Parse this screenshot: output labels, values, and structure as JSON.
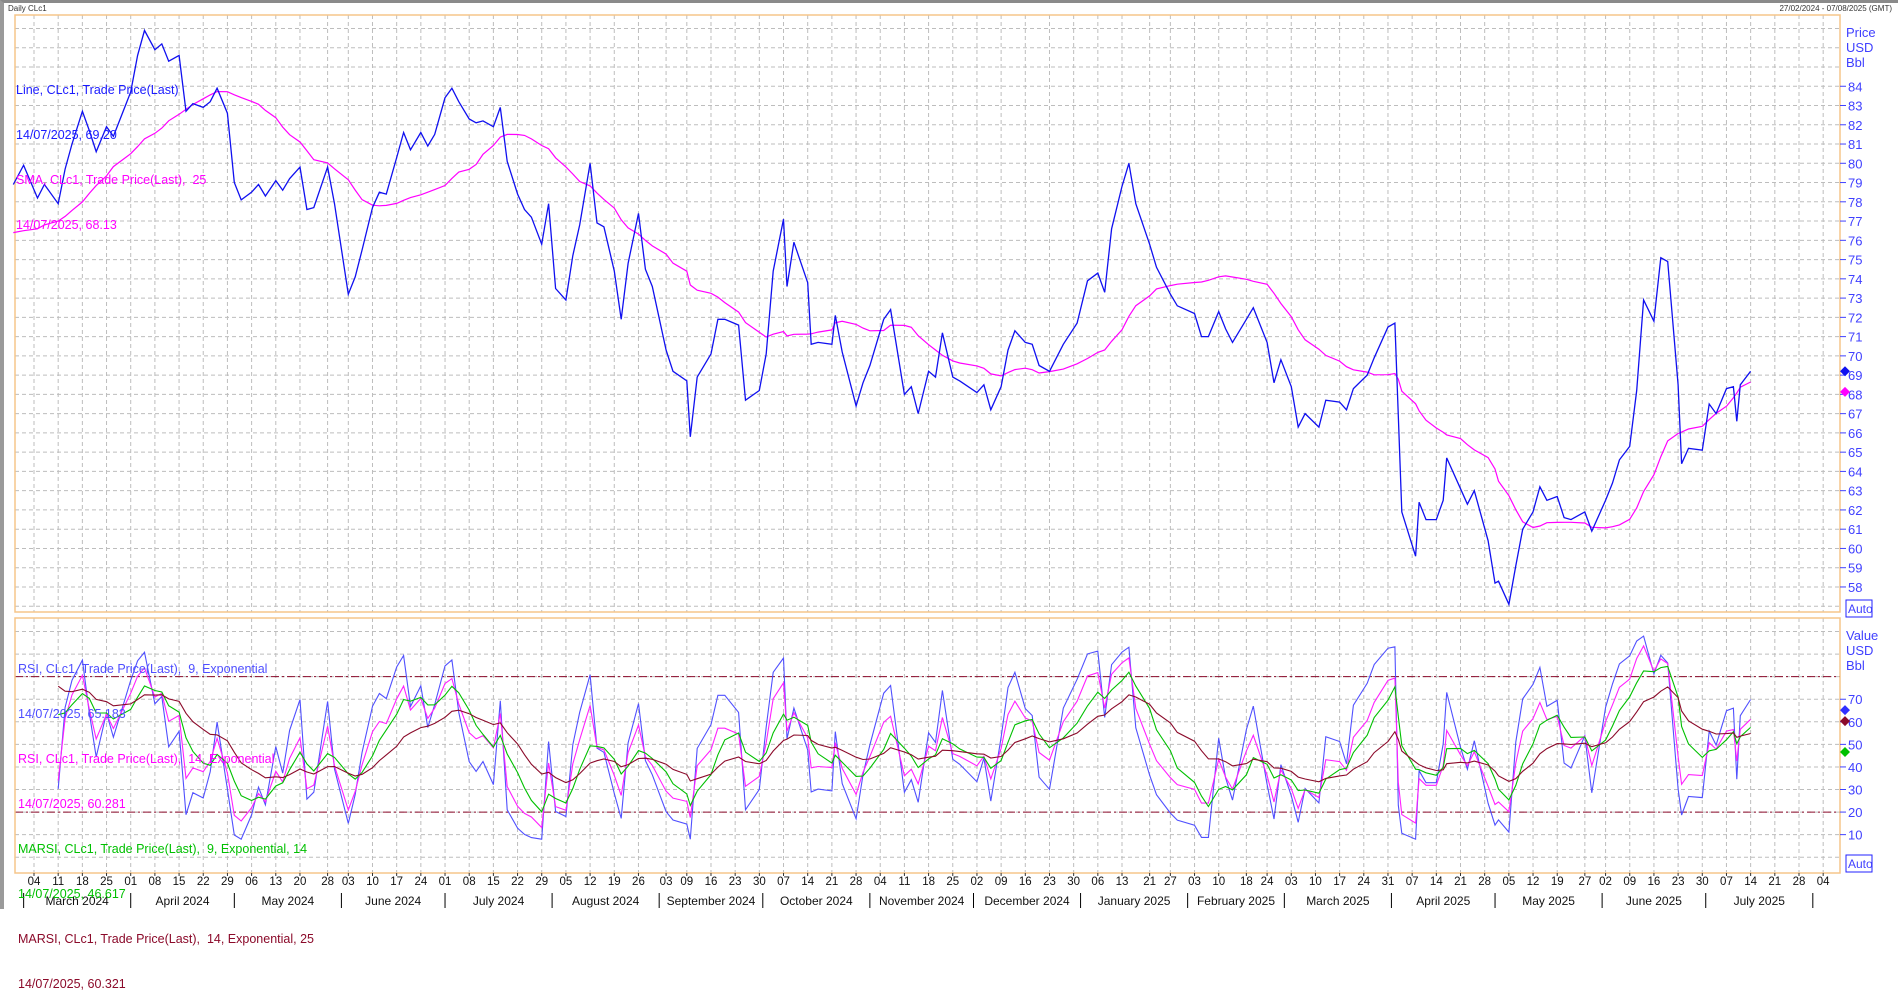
{
  "window": {
    "title": "Daily CLc1",
    "range": "27/02/2024 - 07/08/2025 (GMT)"
  },
  "colors": {
    "price": "#1010f0",
    "sma": "#ff00ff",
    "rsi9": "#5050ff",
    "rsi14": "#ff20ff",
    "marsi9": "#00c000",
    "marsi14": "#8b0a2a",
    "axis_text": "#4040ff",
    "border": "#f5c58a",
    "grid": "#bdbdbd"
  },
  "legend_upper": [
    {
      "label": "Line, CLc1, Trade Price(Last)",
      "value": "14/07/2025, 69.20",
      "color": "#1a1aff"
    },
    {
      "label": "SMA, CLc1, Trade Price(Last),  25",
      "value": "14/07/2025, 68.13",
      "color": "#ff00ff"
    }
  ],
  "legend_lower": [
    {
      "label": "RSI, CLc1, Trade Price(Last),  9, Exponential",
      "value": "14/07/2025, 65.183",
      "color": "#4f4fff"
    },
    {
      "label": "RSI, CLc1, Trade Price(Last),  14, Exponential",
      "value": "14/07/2025, 60.281",
      "color": "#ff00ff"
    },
    {
      "label": "MARSI, CLc1, Trade Price(Last),  9, Exponential, 14",
      "value": "14/07/2025, 46.617",
      "color": "#00c000"
    },
    {
      "label": "MARSI, CLc1, Trade Price(Last),  14, Exponential, 25",
      "value": "14/07/2025, 60.321",
      "color": "#8b0a2a"
    }
  ],
  "axis_upper": {
    "unit_lines": [
      "Price",
      "USD",
      "Bbl"
    ],
    "auto_label": "Auto"
  },
  "axis_lower": {
    "unit_lines": [
      "Value",
      "USD",
      "Bbl"
    ],
    "auto_label": "Auto"
  },
  "chart_data": [
    {
      "type": "line",
      "title": "",
      "ylim": [
        56.7,
        87.7
      ],
      "yticks": [
        58,
        59,
        60,
        61,
        62,
        63,
        64,
        65,
        66,
        67,
        68,
        69,
        70,
        71,
        72,
        73,
        74,
        75,
        76,
        77,
        78,
        79,
        80,
        81,
        82,
        83,
        84
      ],
      "last_markers": [
        {
          "series": "Line",
          "value": 69.2,
          "color": "#1010f0"
        },
        {
          "series": "SMA",
          "value": 68.13,
          "color": "#ff00ff"
        }
      ],
      "series": [
        {
          "name": "Line, CLc1, Trade Price(Last)",
          "color": "#1010f0",
          "x": [
            "2024-02-27",
            "2024-03-01",
            "2024-03-05",
            "2024-03-07",
            "2024-03-11",
            "2024-03-13",
            "2024-03-15",
            "2024-03-18",
            "2024-03-20",
            "2024-03-22",
            "2024-03-25",
            "2024-03-27",
            "2024-04-01",
            "2024-04-03",
            "2024-04-05",
            "2024-04-08",
            "2024-04-10",
            "2024-04-12",
            "2024-04-15",
            "2024-04-17",
            "2024-04-19",
            "2024-04-22",
            "2024-04-24",
            "2024-04-26",
            "2024-04-29",
            "2024-05-01",
            "2024-05-03",
            "2024-05-06",
            "2024-05-08",
            "2024-05-10",
            "2024-05-13",
            "2024-05-15",
            "2024-05-17",
            "2024-05-20",
            "2024-05-22",
            "2024-05-24",
            "2024-05-28",
            "2024-05-30",
            "2024-06-03",
            "2024-06-05",
            "2024-06-07",
            "2024-06-10",
            "2024-06-12",
            "2024-06-14",
            "2024-06-17",
            "2024-06-19",
            "2024-06-21",
            "2024-06-24",
            "2024-06-26",
            "2024-06-28",
            "2024-07-01",
            "2024-07-03",
            "2024-07-05",
            "2024-07-08",
            "2024-07-10",
            "2024-07-12",
            "2024-07-15",
            "2024-07-17",
            "2024-07-19",
            "2024-07-22",
            "2024-07-24",
            "2024-07-26",
            "2024-07-29",
            "2024-07-31",
            "2024-08-02",
            "2024-08-05",
            "2024-08-07",
            "2024-08-09",
            "2024-08-12",
            "2024-08-14",
            "2024-08-16",
            "2024-08-19",
            "2024-08-21",
            "2024-08-23",
            "2024-08-26",
            "2024-08-28",
            "2024-08-30",
            "2024-09-03",
            "2024-09-05",
            "2024-09-09",
            "2024-09-10",
            "2024-09-12",
            "2024-09-16",
            "2024-09-18",
            "2024-09-20",
            "2024-09-24",
            "2024-09-26",
            "2024-09-30",
            "2024-10-02",
            "2024-10-04",
            "2024-10-07",
            "2024-10-08",
            "2024-10-10",
            "2024-10-14",
            "2024-10-15",
            "2024-10-17",
            "2024-10-21",
            "2024-10-22",
            "2024-10-24",
            "2024-10-28",
            "2024-10-30",
            "2024-11-01",
            "2024-11-05",
            "2024-11-07",
            "2024-11-11",
            "2024-11-13",
            "2024-11-15",
            "2024-11-18",
            "2024-11-20",
            "2024-11-22",
            "2024-11-25",
            "2024-11-27",
            "2024-12-02",
            "2024-12-04",
            "2024-12-06",
            "2024-12-09",
            "2024-12-11",
            "2024-12-13",
            "2024-12-16",
            "2024-12-18",
            "2024-12-20",
            "2024-12-23",
            "2024-12-27",
            "2024-12-31",
            "2025-01-03",
            "2025-01-06",
            "2025-01-08",
            "2025-01-10",
            "2025-01-13",
            "2025-01-15",
            "2025-01-17",
            "2025-01-21",
            "2025-01-23",
            "2025-01-27",
            "2025-01-29",
            "2025-02-03",
            "2025-02-05",
            "2025-02-07",
            "2025-02-10",
            "2025-02-12",
            "2025-02-14",
            "2025-02-18",
            "2025-02-20",
            "2025-02-24",
            "2025-02-26",
            "2025-02-28",
            "2025-03-03",
            "2025-03-05",
            "2025-03-07",
            "2025-03-11",
            "2025-03-13",
            "2025-03-17",
            "2025-03-19",
            "2025-03-21",
            "2025-03-25",
            "2025-03-27",
            "2025-03-31",
            "2025-04-02",
            "2025-04-03",
            "2025-04-04",
            "2025-04-08",
            "2025-04-09",
            "2025-04-11",
            "2025-04-14",
            "2025-04-16",
            "2025-04-17",
            "2025-04-21",
            "2025-04-23",
            "2025-04-25",
            "2025-04-29",
            "2025-05-01",
            "2025-05-02",
            "2025-05-05",
            "2025-05-07",
            "2025-05-09",
            "2025-05-12",
            "2025-05-14",
            "2025-05-16",
            "2025-05-19",
            "2025-05-21",
            "2025-05-23",
            "2025-05-27",
            "2025-05-29",
            "2025-06-02",
            "2025-06-04",
            "2025-06-06",
            "2025-06-09",
            "2025-06-11",
            "2025-06-13",
            "2025-06-16",
            "2025-06-18",
            "2025-06-20",
            "2025-06-23",
            "2025-06-24",
            "2025-06-26",
            "2025-06-30",
            "2025-07-02",
            "2025-07-04",
            "2025-07-07",
            "2025-07-09",
            "2025-07-10",
            "2025-07-11",
            "2025-07-14"
          ],
          "values": [
            78.9,
            79.9,
            78.2,
            78.9,
            77.9,
            79.7,
            81.0,
            82.7,
            81.7,
            80.6,
            81.9,
            81.4,
            83.7,
            85.6,
            86.9,
            85.9,
            86.2,
            85.3,
            85.6,
            82.7,
            83.1,
            82.9,
            83.2,
            83.9,
            82.6,
            79.0,
            78.1,
            78.5,
            78.9,
            78.3,
            79.1,
            78.6,
            79.2,
            79.8,
            77.6,
            77.7,
            79.8,
            77.9,
            73.2,
            74.1,
            75.5,
            77.7,
            78.5,
            78.4,
            80.3,
            81.6,
            80.7,
            81.6,
            80.9,
            81.5,
            83.4,
            83.9,
            83.2,
            82.3,
            82.1,
            82.2,
            81.9,
            82.9,
            80.1,
            78.4,
            77.6,
            77.2,
            75.8,
            77.9,
            73.5,
            72.9,
            75.2,
            76.8,
            80.0,
            76.9,
            76.7,
            74.4,
            71.9,
            74.8,
            77.4,
            74.5,
            73.6,
            70.3,
            69.2,
            68.7,
            65.8,
            68.9,
            70.1,
            71.9,
            71.9,
            71.6,
            67.7,
            68.2,
            70.1,
            74.4,
            77.1,
            73.6,
            75.9,
            73.8,
            70.6,
            70.7,
            70.6,
            72.1,
            70.2,
            67.4,
            68.6,
            69.5,
            71.9,
            72.4,
            68.0,
            68.4,
            67.0,
            69.2,
            68.9,
            71.2,
            68.9,
            68.7,
            68.1,
            68.5,
            67.2,
            68.4,
            70.3,
            71.3,
            70.7,
            70.6,
            69.5,
            69.2,
            70.6,
            71.7,
            73.9,
            74.3,
            73.3,
            76.6,
            78.8,
            80.0,
            77.9,
            75.8,
            74.6,
            73.2,
            72.6,
            72.2,
            71.0,
            71.0,
            72.3,
            71.4,
            70.7,
            71.9,
            72.5,
            70.7,
            68.6,
            69.8,
            68.4,
            66.3,
            67.0,
            66.3,
            67.7,
            67.6,
            67.2,
            68.3,
            69.0,
            69.9,
            71.5,
            71.7,
            66.9,
            61.9,
            59.6,
            62.4,
            61.5,
            61.5,
            62.5,
            64.7,
            63.1,
            62.3,
            63.0,
            60.4,
            58.2,
            58.3,
            57.1,
            59.1,
            61.0,
            61.9,
            63.2,
            62.5,
            62.7,
            61.6,
            61.5,
            61.9,
            60.9,
            62.5,
            63.4,
            64.6,
            65.3,
            68.2,
            72.9,
            71.8,
            75.1,
            74.9,
            68.5,
            64.4,
            65.2,
            65.1,
            67.5,
            67.0,
            68.3,
            68.4,
            66.6,
            68.5,
            69.2
          ]
        },
        {
          "name": "SMA, CLc1, Trade Price(Last),  25",
          "color": "#ff00ff",
          "derived_from": "Line",
          "period": 25
        }
      ]
    },
    {
      "type": "line",
      "title": "",
      "ylim": [
        -7,
        106
      ],
      "yticks": [
        10,
        20,
        30,
        40,
        50,
        60,
        70
      ],
      "reference_lines": [
        20,
        80
      ],
      "last_markers": [
        {
          "value": 65.183,
          "color": "#3030ff"
        },
        {
          "value": 60.321,
          "color": "#8b0a2a"
        },
        {
          "value": 46.617,
          "color": "#00c000"
        }
      ],
      "series": [
        {
          "name": "RSI, CLc1, Trade Price(Last),  9, Exponential",
          "color": "#5050ff",
          "last": 65.183
        },
        {
          "name": "RSI, CLc1, Trade Price(Last),  14, Exponential",
          "color": "#ff20ff",
          "last": 60.281
        },
        {
          "name": "MARSI, CLc1, Trade Price(Last),  9, Exponential, 14",
          "color": "#00c000",
          "last": 46.617
        },
        {
          "name": "MARSI, CLc1, Trade Price(Last),  14, Exponential, 25",
          "color": "#8b0a2a",
          "last": 60.321
        }
      ]
    }
  ],
  "x_axis": {
    "months": [
      {
        "label": "March 2024",
        "ticks": [
          "04",
          "11",
          "18",
          "25"
        ]
      },
      {
        "label": "April 2024",
        "ticks": [
          "01",
          "08",
          "15",
          "22",
          "29"
        ]
      },
      {
        "label": "May 2024",
        "ticks": [
          "06",
          "13",
          "20",
          "28"
        ]
      },
      {
        "label": "June 2024",
        "ticks": [
          "03",
          "10",
          "17",
          "24"
        ]
      },
      {
        "label": "July 2024",
        "ticks": [
          "01",
          "08",
          "15",
          "22",
          "29"
        ]
      },
      {
        "label": "August 2024",
        "ticks": [
          "05",
          "12",
          "19",
          "26"
        ]
      },
      {
        "label": "September 2024",
        "ticks": [
          "03",
          "09",
          "16",
          "23",
          "30"
        ]
      },
      {
        "label": "October 2024",
        "ticks": [
          "07",
          "14",
          "21",
          "28"
        ]
      },
      {
        "label": "November 2024",
        "ticks": [
          "04",
          "11",
          "18",
          "25"
        ]
      },
      {
        "label": "December 2024",
        "ticks": [
          "02",
          "09",
          "16",
          "23",
          "30"
        ]
      },
      {
        "label": "January 2025",
        "ticks": [
          "06",
          "13",
          "21",
          "27"
        ]
      },
      {
        "label": "February 2025",
        "ticks": [
          "03",
          "10",
          "18",
          "24"
        ]
      },
      {
        "label": "March 2025",
        "ticks": [
          "03",
          "10",
          "17",
          "24",
          "31"
        ]
      },
      {
        "label": "April 2025",
        "ticks": [
          "07",
          "14",
          "21",
          "28"
        ]
      },
      {
        "label": "May 2025",
        "ticks": [
          "05",
          "12",
          "19",
          "27"
        ]
      },
      {
        "label": "June 2025",
        "ticks": [
          "02",
          "09",
          "16",
          "23",
          "30"
        ]
      },
      {
        "label": "July 2025",
        "ticks": [
          "07",
          "14",
          "21",
          "28"
        ]
      },
      {
        "label": "",
        "ticks": [
          "04"
        ]
      }
    ]
  }
}
